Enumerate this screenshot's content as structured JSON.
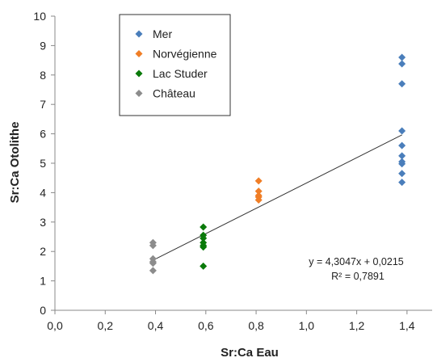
{
  "chart_data": {
    "type": "scatter",
    "xlabel": "Sr:Ca Eau",
    "ylabel": "Sr:Ca Otolithe",
    "xlim": [
      0,
      1.5
    ],
    "ylim": [
      0,
      10
    ],
    "x_ticks": [
      "0,0",
      "0,2",
      "0,4",
      "0,6",
      "0,8",
      "1,0",
      "1,2",
      "1,4"
    ],
    "y_ticks": [
      "0",
      "1",
      "2",
      "3",
      "4",
      "5",
      "6",
      "7",
      "8",
      "9",
      "10"
    ],
    "grid": false,
    "legend_position": "top-left",
    "series": [
      {
        "name": "Mer",
        "color": "#4A7EBB",
        "marker": "diamond",
        "points": [
          [
            1.38,
            8.6
          ],
          [
            1.38,
            8.38
          ],
          [
            1.38,
            7.7
          ],
          [
            1.38,
            6.1
          ],
          [
            1.38,
            5.6
          ],
          [
            1.38,
            5.25
          ],
          [
            1.38,
            5.05
          ],
          [
            1.38,
            4.98
          ],
          [
            1.38,
            4.65
          ],
          [
            1.38,
            4.35
          ]
        ]
      },
      {
        "name": "Norvégienne",
        "color": "#F07E26",
        "marker": "diamond",
        "points": [
          [
            0.81,
            4.4
          ],
          [
            0.81,
            4.05
          ],
          [
            0.81,
            3.9
          ],
          [
            0.81,
            3.85
          ],
          [
            0.81,
            3.75
          ]
        ]
      },
      {
        "name": "Lac Studer",
        "color": "#0A7A0A",
        "marker": "diamond",
        "points": [
          [
            0.59,
            2.83
          ],
          [
            0.59,
            2.55
          ],
          [
            0.59,
            2.45
          ],
          [
            0.59,
            2.3
          ],
          [
            0.59,
            2.2
          ],
          [
            0.59,
            2.15
          ],
          [
            0.59,
            1.5
          ]
        ]
      },
      {
        "name": "Château",
        "color": "#8C8C8C",
        "marker": "diamond",
        "points": [
          [
            0.39,
            2.3
          ],
          [
            0.39,
            2.2
          ],
          [
            0.39,
            1.75
          ],
          [
            0.39,
            1.65
          ],
          [
            0.39,
            1.6
          ],
          [
            0.39,
            1.35
          ]
        ]
      }
    ],
    "trendline": {
      "slope": 4.3047,
      "intercept": 0.0215,
      "x_range": [
        0.39,
        1.38
      ],
      "color": "#333333"
    },
    "annotations": {
      "equation": "y = 4,3047x + 0,0215",
      "r_squared": "R² = 0,7891"
    }
  }
}
